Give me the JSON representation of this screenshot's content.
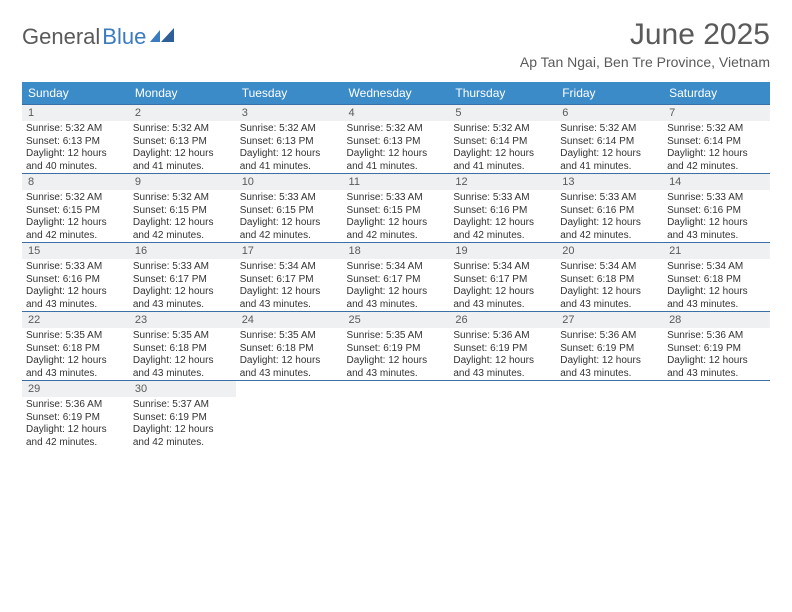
{
  "logo": {
    "word1": "General",
    "word2": "Blue"
  },
  "title": "June 2025",
  "location": "Ap Tan Ngai, Ben Tre Province, Vietnam",
  "colors": {
    "header_bg": "#3b8bc9",
    "header_text": "#ffffff",
    "daynum_bg": "#eef0f1",
    "border": "#3b6fa8",
    "text": "#333333",
    "logo_blue": "#3b7bbf",
    "logo_gray": "#5a5a5a",
    "background": "#ffffff"
  },
  "typography": {
    "title_fontsize": 30,
    "location_fontsize": 14,
    "weekday_fontsize": 12,
    "daynum_fontsize": 11,
    "info_fontsize": 10
  },
  "weekdays": [
    "Sunday",
    "Monday",
    "Tuesday",
    "Wednesday",
    "Thursday",
    "Friday",
    "Saturday"
  ],
  "days": [
    {
      "n": "1",
      "sr": "Sunrise: 5:32 AM",
      "ss": "Sunset: 6:13 PM",
      "d1": "Daylight: 12 hours",
      "d2": "and 40 minutes."
    },
    {
      "n": "2",
      "sr": "Sunrise: 5:32 AM",
      "ss": "Sunset: 6:13 PM",
      "d1": "Daylight: 12 hours",
      "d2": "and 41 minutes."
    },
    {
      "n": "3",
      "sr": "Sunrise: 5:32 AM",
      "ss": "Sunset: 6:13 PM",
      "d1": "Daylight: 12 hours",
      "d2": "and 41 minutes."
    },
    {
      "n": "4",
      "sr": "Sunrise: 5:32 AM",
      "ss": "Sunset: 6:13 PM",
      "d1": "Daylight: 12 hours",
      "d2": "and 41 minutes."
    },
    {
      "n": "5",
      "sr": "Sunrise: 5:32 AM",
      "ss": "Sunset: 6:14 PM",
      "d1": "Daylight: 12 hours",
      "d2": "and 41 minutes."
    },
    {
      "n": "6",
      "sr": "Sunrise: 5:32 AM",
      "ss": "Sunset: 6:14 PM",
      "d1": "Daylight: 12 hours",
      "d2": "and 41 minutes."
    },
    {
      "n": "7",
      "sr": "Sunrise: 5:32 AM",
      "ss": "Sunset: 6:14 PM",
      "d1": "Daylight: 12 hours",
      "d2": "and 42 minutes."
    },
    {
      "n": "8",
      "sr": "Sunrise: 5:32 AM",
      "ss": "Sunset: 6:15 PM",
      "d1": "Daylight: 12 hours",
      "d2": "and 42 minutes."
    },
    {
      "n": "9",
      "sr": "Sunrise: 5:32 AM",
      "ss": "Sunset: 6:15 PM",
      "d1": "Daylight: 12 hours",
      "d2": "and 42 minutes."
    },
    {
      "n": "10",
      "sr": "Sunrise: 5:33 AM",
      "ss": "Sunset: 6:15 PM",
      "d1": "Daylight: 12 hours",
      "d2": "and 42 minutes."
    },
    {
      "n": "11",
      "sr": "Sunrise: 5:33 AM",
      "ss": "Sunset: 6:15 PM",
      "d1": "Daylight: 12 hours",
      "d2": "and 42 minutes."
    },
    {
      "n": "12",
      "sr": "Sunrise: 5:33 AM",
      "ss": "Sunset: 6:16 PM",
      "d1": "Daylight: 12 hours",
      "d2": "and 42 minutes."
    },
    {
      "n": "13",
      "sr": "Sunrise: 5:33 AM",
      "ss": "Sunset: 6:16 PM",
      "d1": "Daylight: 12 hours",
      "d2": "and 42 minutes."
    },
    {
      "n": "14",
      "sr": "Sunrise: 5:33 AM",
      "ss": "Sunset: 6:16 PM",
      "d1": "Daylight: 12 hours",
      "d2": "and 43 minutes."
    },
    {
      "n": "15",
      "sr": "Sunrise: 5:33 AM",
      "ss": "Sunset: 6:16 PM",
      "d1": "Daylight: 12 hours",
      "d2": "and 43 minutes."
    },
    {
      "n": "16",
      "sr": "Sunrise: 5:33 AM",
      "ss": "Sunset: 6:17 PM",
      "d1": "Daylight: 12 hours",
      "d2": "and 43 minutes."
    },
    {
      "n": "17",
      "sr": "Sunrise: 5:34 AM",
      "ss": "Sunset: 6:17 PM",
      "d1": "Daylight: 12 hours",
      "d2": "and 43 minutes."
    },
    {
      "n": "18",
      "sr": "Sunrise: 5:34 AM",
      "ss": "Sunset: 6:17 PM",
      "d1": "Daylight: 12 hours",
      "d2": "and 43 minutes."
    },
    {
      "n": "19",
      "sr": "Sunrise: 5:34 AM",
      "ss": "Sunset: 6:17 PM",
      "d1": "Daylight: 12 hours",
      "d2": "and 43 minutes."
    },
    {
      "n": "20",
      "sr": "Sunrise: 5:34 AM",
      "ss": "Sunset: 6:18 PM",
      "d1": "Daylight: 12 hours",
      "d2": "and 43 minutes."
    },
    {
      "n": "21",
      "sr": "Sunrise: 5:34 AM",
      "ss": "Sunset: 6:18 PM",
      "d1": "Daylight: 12 hours",
      "d2": "and 43 minutes."
    },
    {
      "n": "22",
      "sr": "Sunrise: 5:35 AM",
      "ss": "Sunset: 6:18 PM",
      "d1": "Daylight: 12 hours",
      "d2": "and 43 minutes."
    },
    {
      "n": "23",
      "sr": "Sunrise: 5:35 AM",
      "ss": "Sunset: 6:18 PM",
      "d1": "Daylight: 12 hours",
      "d2": "and 43 minutes."
    },
    {
      "n": "24",
      "sr": "Sunrise: 5:35 AM",
      "ss": "Sunset: 6:18 PM",
      "d1": "Daylight: 12 hours",
      "d2": "and 43 minutes."
    },
    {
      "n": "25",
      "sr": "Sunrise: 5:35 AM",
      "ss": "Sunset: 6:19 PM",
      "d1": "Daylight: 12 hours",
      "d2": "and 43 minutes."
    },
    {
      "n": "26",
      "sr": "Sunrise: 5:36 AM",
      "ss": "Sunset: 6:19 PM",
      "d1": "Daylight: 12 hours",
      "d2": "and 43 minutes."
    },
    {
      "n": "27",
      "sr": "Sunrise: 5:36 AM",
      "ss": "Sunset: 6:19 PM",
      "d1": "Daylight: 12 hours",
      "d2": "and 43 minutes."
    },
    {
      "n": "28",
      "sr": "Sunrise: 5:36 AM",
      "ss": "Sunset: 6:19 PM",
      "d1": "Daylight: 12 hours",
      "d2": "and 43 minutes."
    },
    {
      "n": "29",
      "sr": "Sunrise: 5:36 AM",
      "ss": "Sunset: 6:19 PM",
      "d1": "Daylight: 12 hours",
      "d2": "and 42 minutes."
    },
    {
      "n": "30",
      "sr": "Sunrise: 5:37 AM",
      "ss": "Sunset: 6:19 PM",
      "d1": "Daylight: 12 hours",
      "d2": "and 42 minutes."
    }
  ]
}
